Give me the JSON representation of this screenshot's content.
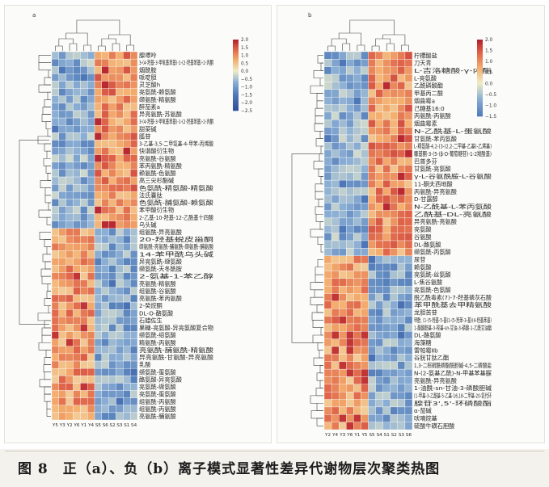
{
  "caption": {
    "text": "图 8　正（a）、负（b）离子模式显著性差异代谢物层次聚类热图"
  },
  "chart_data": [
    {
      "type": "heatmap",
      "panel_label": "a",
      "columns": [
        "Y5",
        "Y3",
        "Y2",
        "Y6",
        "Y1",
        "Y4",
        "S5",
        "S6",
        "S2",
        "S3",
        "S1",
        "S4"
      ],
      "legend": {
        "ticks": [
          2.0,
          1.5,
          1.0,
          0.5,
          0.0,
          -0.5,
          -1.0,
          -1.5,
          -2.0,
          -2.5
        ],
        "tick_labels": [
          "2.0",
          "1.5",
          "1.0",
          "0.5",
          "0.0",
          "−0.5",
          "−1.0",
          "−1.5",
          "−2.0",
          "−2.5"
        ],
        "range": [
          -2.5,
          2.0
        ]
      },
      "group_split": 24,
      "rows": [
        "腺嘌呤",
        "3-(4-羟基-3-甲氧基苯基)-1-(2-羟基苯基)-2-丙酮",
        "烟酰胺",
        "哌啶胆",
        "灵芝酸h",
        "亮氨酰-赖氨酸",
        "缬氨酰-精氨酸",
        "醉茄素a",
        "异亮氨酰-苏氨酸",
        "3-(4-羟基-3-甲氧基苯基)-1-(2-羟基苯基)-2-丙酮",
        "甜菜碱",
        "胍苷",
        "3-乙基-3,5-二甲氧基-4-甲苯-丙烯酸",
        "快谐酸衍生物",
        "亮氨酰-谷氨酸",
        "苯丙氨酰-精氨酸",
        "赖氨酰-色氨酸",
        "高三尖杉酯碱",
        "色氨酰-精氨酸-精氨酸",
        "法氏囊肽",
        "色氨酰-脯氨酸-赖氨酸",
        "苯甲酸衍生物",
        "2-乙基-10-羟基-12-乙酰基十四酸",
        "乌头碱",
        "组氨酰-异亮氨酸",
        "20-羟基蜕皮甾酮",
        "缬氨酰-亮氨酰-脯氨酰-缬氨酰-脯氨酸",
        "14-苯甲酰乌头碱",
        "异亮氨酰-缬氨酸",
        "缬氨酰-天冬酰胺",
        "2-氨基-1-苯乙醇",
        "亮氨酰-精氨酸",
        "组氨酰-谷氨酸",
        "亮氨酰-苯丙氨酸",
        "2-癸烷酮",
        "DL-O-酪氨酸",
        "石蜡佐生",
        "果糖-亮氨酸-异亮氨酸复合物",
        "缬氨酰-组氨酸",
        "精氨酰-丙氨酸",
        "亮氨酰-脯氨酰-精氨酸",
        "异亮氨酰-甘氨酸-异亮氨酸",
        "乳酸",
        "缬氨酰-蛋氨酸",
        "酪氨酸-异亮氨酸",
        "亮氨酰-缬氨酸",
        "亮氨酰-蛋氨酸",
        "组氨酰-丙氨酸",
        "组氨酰-丙氨酸",
        "亮氨酰-脯氨酸"
      ]
    },
    {
      "type": "heatmap",
      "panel_label": "b",
      "columns": [
        "Y2",
        "Y4",
        "Y3",
        "Y6",
        "Y1",
        "Y5",
        "S5",
        "S4",
        "S1",
        "S2",
        "S3",
        "S6"
      ],
      "legend": {
        "ticks": [
          2.0,
          1.5,
          1.0,
          0.5,
          0.0,
          -0.5,
          -1.0,
          -1.5
        ],
        "tick_labels": [
          "2.0",
          "1.5",
          "1.0",
          "0.5",
          "0.0",
          "−0.5",
          "−1.0",
          "−1.5"
        ],
        "range": [
          -1.5,
          2.0
        ]
      },
      "group_split": 27,
      "rows": [
        "柠檬酸盐",
        "刀天青",
        "L-吉洛糖酸-γ-内酯",
        "L-亮氨酸",
        "乙酰磷酸酯",
        "甲基丙二酸",
        "烟曲霉a",
        "己糖基16:0",
        "丙氨酰-丙氨酸",
        "烟曲霉素",
        "N-乙酰基-L-蛋氨酸",
        "甘氨酰-苯丙氨酸",
        "L-精氨酸-4,2-(3-(2,2-二甲基-乙基)-乙烯基)",
        "糠基酮-3-(5-(β-D-葡萄糖苷)-1-2羧酸基)",
        "巴普多芬",
        "甘氨酰-亮氨酸",
        "γ-L-谷氨酰胺-L-谷氨酸",
        "11-酮夫西地酸",
        "丙氨酰-异亮氨酸",
        "D-甘露醇",
        "N-乙酰基-L-苯丙氨酸",
        "乙酰基-DL-亮氨酸",
        "异亮氨酰-亮氨酸",
        "亮氨酸",
        "谷氨酸",
        "DL-酪氨酸",
        "缬氨酰-丙氨酸",
        "尿苷",
        "赖氨酸",
        "亮氨酰-丝氨酸",
        "L-焦谷氨酸",
        "亮氨酰-色氨酸",
        "脱乙酰毒素(7)-7-羟基磷灰石酸",
        "苯甲酰基去甲精氨酸",
        "龙胆苦苷",
        "甲酚, (1-(5-羟基-5-基(1-(5-羟苯-3-基)(4-羟基苯基)",
        "1-醋酸酰基-3-羟基-sn-甘油-3-磷酸-1-乙酰甘油酯",
        "DL-酪氨酸",
        "海藻糖",
        "雷帕霉Ⅱb",
        "谷胱甘肽乙酯",
        "1,3-二棕榈酰磷酯酰胆碱-4,5-二磷酸盐",
        "N-(2-氨基乙酰)-N-甲基苯基脲",
        "亮氨酰-异亮氨酸",
        "1-油酰-sn-甘油-3-磷酸胆碱",
        "(1-甲基-3-乙酰基-5-乙基-16,18-二甲基-20-氧代环",
        "腺苷3',5'-环磷酸酯",
        "α-茄碱",
        "吠喃烷基",
        "硫酸牛磺石胆酸"
      ]
    }
  ]
}
